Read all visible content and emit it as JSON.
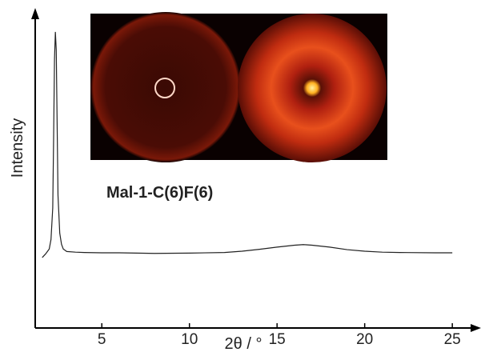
{
  "chart_data": {
    "type": "line",
    "xlabel": "2θ / °",
    "ylabel": "Intensity",
    "annotation": "Mal-1-C(6)F(6)",
    "xlim": [
      1.2,
      26.5
    ],
    "ylim": [
      0,
      100
    ],
    "xticks": [
      5,
      10,
      15,
      20,
      25
    ],
    "color": "#222222",
    "x": [
      1.6,
      1.8,
      2.0,
      2.1,
      2.2,
      2.25,
      2.3,
      2.35,
      2.4,
      2.45,
      2.5,
      2.6,
      2.7,
      2.8,
      3.0,
      3.5,
      4,
      5,
      6,
      8,
      10,
      12,
      13,
      14,
      15,
      16,
      16.5,
      17,
      18,
      19,
      20,
      21,
      22,
      24,
      25
    ],
    "values": [
      22.3,
      23.5,
      25,
      28,
      38,
      60,
      85,
      93.7,
      88,
      65,
      42,
      30,
      26.5,
      25,
      24.2,
      24,
      23.9,
      23.8,
      23.8,
      23.6,
      23.7,
      23.9,
      24.3,
      24.9,
      25.6,
      26.2,
      26.4,
      26.2,
      25.6,
      24.8,
      24.3,
      24,
      23.9,
      23.8,
      23.8
    ]
  }
}
